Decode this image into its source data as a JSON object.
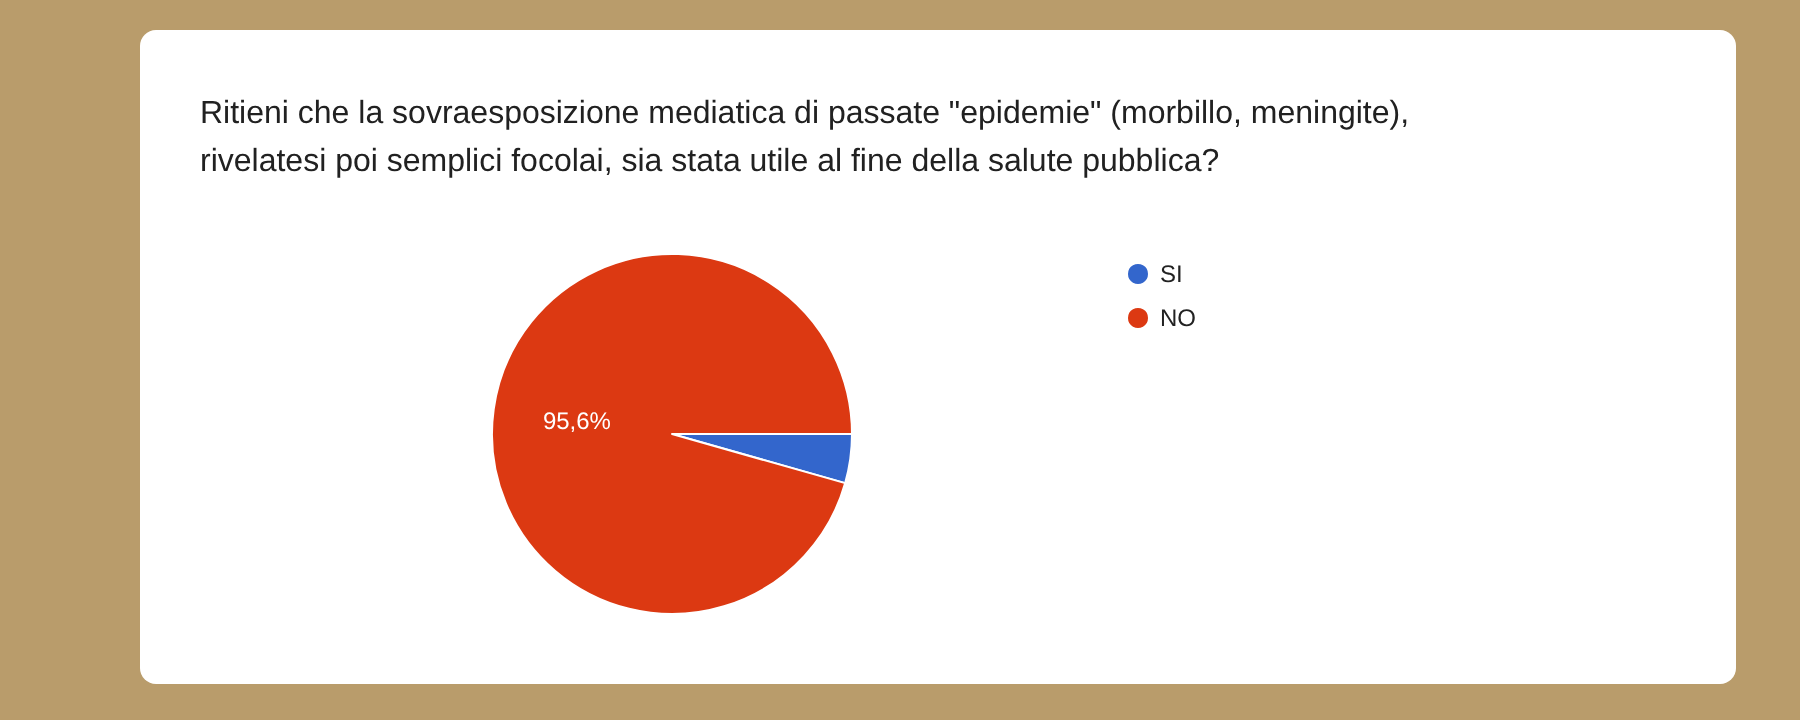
{
  "chart_data": {
    "type": "pie",
    "title": "Ritieni che la sovraesposizione mediatica di passate \"epidemie\" (morbillo, meningite), rivelatesi poi semplici focolai, sia stata utile al fine della salute pubblica?",
    "categories": [
      "SI",
      "NO"
    ],
    "values": [
      4.4,
      95.6
    ],
    "colors": [
      "#3366cc",
      "#dc3912"
    ],
    "value_labels": [
      null,
      "95,6%"
    ],
    "legend": "top right"
  }
}
